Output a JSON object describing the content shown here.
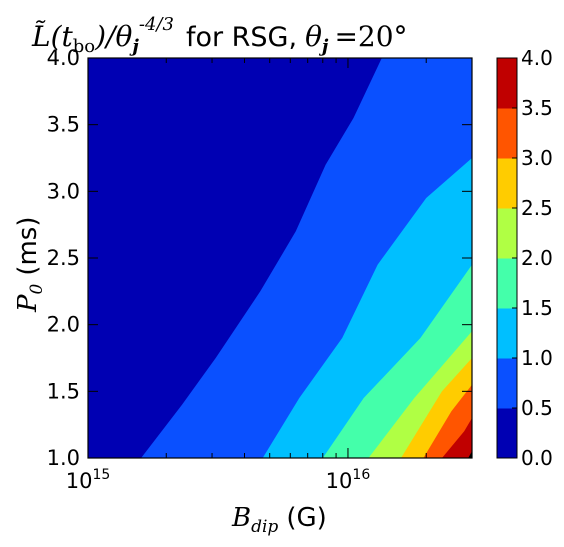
{
  "chart_data": {
    "type": "contour",
    "title": {
      "math_left": "L̃(t",
      "math_sub": "bo",
      "math_mid": ")/θ",
      "math_j": "j",
      "exponent": "-4/3",
      "plain": "for RSG,",
      "theta": "θ",
      "theta_sub": "j",
      "equals": "=20°"
    },
    "xaxis": {
      "label_math": "B",
      "label_sub": "dip",
      "label_unit": "(G)",
      "scale": "log",
      "range": [
        1000000000000000.0,
        3e+16
      ],
      "ticks": [
        {
          "value": 1000000000000000.0,
          "base": "10",
          "exp": "15"
        },
        {
          "value": 1e+16,
          "base": "10",
          "exp": "16"
        }
      ]
    },
    "yaxis": {
      "label_math": "P",
      "label_sub": "0",
      "label_unit": "(ms)",
      "range": [
        1.0,
        4.0
      ],
      "ticks": [
        "1.0",
        "1.5",
        "2.0",
        "2.5",
        "3.0",
        "3.5",
        "4.0"
      ]
    },
    "colorbar": {
      "levels": [
        0.0,
        0.5,
        1.0,
        1.5,
        2.0,
        2.5,
        3.0,
        3.5,
        4.0
      ],
      "tick_labels": [
        "0.0",
        "0.5",
        "1.0",
        "1.5",
        "2.0",
        "2.5",
        "3.0",
        "3.5",
        "4.0"
      ],
      "colors": [
        "#0000b3",
        "#0a50ff",
        "#00bfff",
        "#44ffaa",
        "#b0ff44",
        "#ffcc00",
        "#ff5500",
        "#c00000"
      ]
    },
    "contour_boundaries": [
      {
        "level": 0.5,
        "points": [
          [
            1600000000000000.0,
            1.0
          ],
          [
            2300000000000000.0,
            1.4
          ],
          [
            3100000000000000.0,
            1.75
          ],
          [
            4600000000000000.0,
            2.25
          ],
          [
            6300000000000000.0,
            2.7
          ],
          [
            8200000000000000.0,
            3.2
          ],
          [
            1.05e+16,
            3.55
          ],
          [
            1.35e+16,
            4.0
          ]
        ]
      },
      {
        "level": 1.0,
        "points": [
          [
            4700000000000000.0,
            1.0
          ],
          [
            6500000000000000.0,
            1.45
          ],
          [
            9500000000000000.0,
            1.9
          ],
          [
            1.3e+16,
            2.45
          ],
          [
            2e+16,
            2.95
          ],
          [
            3e+16,
            3.25
          ]
        ]
      },
      {
        "level": 1.5,
        "points": [
          [
            8000000000000000.0,
            1.0
          ],
          [
            1.15e+16,
            1.45
          ],
          [
            1.9e+16,
            1.9
          ],
          [
            3e+16,
            2.45
          ]
        ]
      },
      {
        "level": 2.0,
        "points": [
          [
            1.2e+16,
            1.0
          ],
          [
            1.8e+16,
            1.45
          ],
          [
            3e+16,
            1.95
          ]
        ]
      },
      {
        "level": 2.5,
        "points": [
          [
            1.6e+16,
            1.0
          ],
          [
            2.3e+16,
            1.5
          ],
          [
            3e+16,
            1.75
          ]
        ]
      },
      {
        "level": 3.0,
        "points": [
          [
            1.95e+16,
            1.0
          ],
          [
            2.5e+16,
            1.35
          ],
          [
            3e+16,
            1.55
          ]
        ]
      },
      {
        "level": 3.5,
        "points": [
          [
            2.3e+16,
            1.0
          ],
          [
            2.8e+16,
            1.2
          ],
          [
            3e+16,
            1.3
          ]
        ]
      },
      {
        "level": 4.0,
        "points": [
          [
            2.9e+16,
            1.0
          ],
          [
            3e+16,
            1.05
          ]
        ]
      }
    ]
  }
}
